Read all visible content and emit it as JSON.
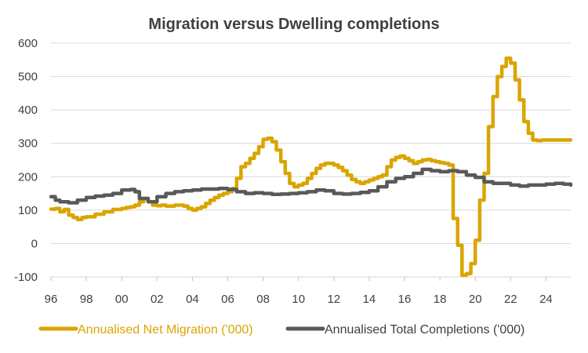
{
  "chart_data": {
    "type": "line",
    "title": "Migration versus Dwelling completions",
    "xlabel": "",
    "ylabel": "",
    "xlim": [
      1996.0,
      2025.4
    ],
    "ylim": [
      -100,
      600
    ],
    "y_ticks": [
      600,
      500,
      400,
      300,
      200,
      100,
      0,
      -100
    ],
    "y_tick_labels": [
      "600",
      "500",
      "400",
      "300",
      "200",
      "100",
      "0",
      "-100"
    ],
    "x_ticks": [
      1996,
      1998,
      2000,
      2002,
      2004,
      2006,
      2008,
      2010,
      2012,
      2014,
      2016,
      2018,
      2020,
      2022,
      2024
    ],
    "x_tick_labels": [
      "96",
      "98",
      "00",
      "02",
      "04",
      "06",
      "08",
      "10",
      "12",
      "14",
      "16",
      "18",
      "20",
      "22",
      "24"
    ],
    "grid": "horizontal",
    "legend_position": "bottom",
    "series": [
      {
        "name": "Annualised Net Migration ('000)",
        "color": "#DAA500",
        "x": [
          1996.0,
          1996.25,
          1996.5,
          1996.75,
          1997.0,
          1997.25,
          1997.5,
          1997.75,
          1998.0,
          1998.5,
          1999.0,
          1999.5,
          2000.0,
          2000.25,
          2000.5,
          2000.75,
          2001.0,
          2001.25,
          2001.5,
          2001.75,
          2002.0,
          2002.25,
          2002.5,
          2003.0,
          2003.5,
          2003.75,
          2004.0,
          2004.25,
          2004.5,
          2004.75,
          2005.0,
          2005.25,
          2005.5,
          2005.75,
          2006.0,
          2006.25,
          2006.5,
          2006.75,
          2007.0,
          2007.25,
          2007.5,
          2007.75,
          2008.0,
          2008.25,
          2008.5,
          2008.75,
          2009.0,
          2009.25,
          2009.5,
          2009.75,
          2010.0,
          2010.25,
          2010.5,
          2010.75,
          2011.0,
          2011.25,
          2011.5,
          2011.75,
          2012.0,
          2012.25,
          2012.5,
          2012.75,
          2013.0,
          2013.25,
          2013.5,
          2013.75,
          2014.0,
          2014.25,
          2014.5,
          2014.75,
          2015.0,
          2015.25,
          2015.5,
          2015.75,
          2016.0,
          2016.25,
          2016.5,
          2016.75,
          2017.0,
          2017.25,
          2017.5,
          2017.75,
          2018.0,
          2018.25,
          2018.5,
          2018.75,
          2019.0,
          2019.25,
          2019.5,
          2019.75,
          2020.0,
          2020.25,
          2020.5,
          2020.75,
          2021.0,
          2021.25,
          2021.5,
          2021.75,
          2022.0,
          2022.25,
          2022.5,
          2022.75,
          2023.0,
          2023.25,
          2023.5,
          2023.75,
          2024.0,
          2024.25,
          2024.5,
          2024.75,
          2025.0,
          2025.25,
          2025.4
        ],
        "values": [
          103,
          105,
          95,
          102,
          85,
          78,
          72,
          78,
          80,
          88,
          95,
          102,
          105,
          108,
          110,
          115,
          125,
          135,
          125,
          115,
          113,
          115,
          112,
          115,
          112,
          105,
          100,
          105,
          110,
          120,
          130,
          138,
          145,
          150,
          155,
          165,
          195,
          230,
          240,
          255,
          270,
          290,
          312,
          315,
          305,
          280,
          245,
          210,
          180,
          170,
          175,
          180,
          195,
          210,
          225,
          235,
          240,
          240,
          235,
          228,
          218,
          205,
          192,
          185,
          180,
          185,
          190,
          195,
          200,
          205,
          230,
          250,
          258,
          262,
          255,
          248,
          240,
          245,
          250,
          252,
          248,
          245,
          242,
          240,
          235,
          75,
          -5,
          -95,
          -90,
          -60,
          10,
          130,
          210,
          350,
          440,
          500,
          530,
          555,
          540,
          490,
          430,
          365,
          330,
          310,
          308,
          310,
          310,
          310,
          310,
          310,
          310,
          310,
          310
        ],
        "x_note": ""
      },
      {
        "name": "Annualised Total Completions ('000)",
        "color": "#595959",
        "x": [
          1996.0,
          1996.25,
          1996.5,
          1997.0,
          1997.5,
          1998.0,
          1998.5,
          1999.0,
          1999.5,
          2000.0,
          2000.5,
          2000.75,
          2001.0,
          2001.5,
          2002.0,
          2002.5,
          2003.0,
          2003.5,
          2004.0,
          2004.5,
          2005.0,
          2005.5,
          2006.0,
          2006.5,
          2007.0,
          2007.5,
          2008.0,
          2008.5,
          2009.0,
          2009.5,
          2010.0,
          2010.5,
          2011.0,
          2011.5,
          2012.0,
          2012.5,
          2013.0,
          2013.5,
          2014.0,
          2014.5,
          2015.0,
          2015.5,
          2016.0,
          2016.5,
          2017.0,
          2017.5,
          2018.0,
          2018.5,
          2019.0,
          2019.5,
          2020.0,
          2020.5,
          2021.0,
          2021.5,
          2022.0,
          2022.5,
          2023.0,
          2023.5,
          2024.0,
          2024.5,
          2025.0,
          2025.4
        ],
        "values": [
          140,
          130,
          125,
          122,
          130,
          138,
          142,
          145,
          150,
          160,
          162,
          155,
          135,
          125,
          140,
          150,
          155,
          158,
          160,
          163,
          163,
          165,
          162,
          155,
          150,
          152,
          150,
          147,
          148,
          150,
          152,
          155,
          160,
          158,
          150,
          148,
          150,
          153,
          158,
          170,
          185,
          195,
          200,
          210,
          222,
          218,
          215,
          218,
          215,
          205,
          198,
          185,
          180,
          180,
          175,
          172,
          175,
          175,
          178,
          180,
          178,
          175
        ]
      }
    ]
  }
}
